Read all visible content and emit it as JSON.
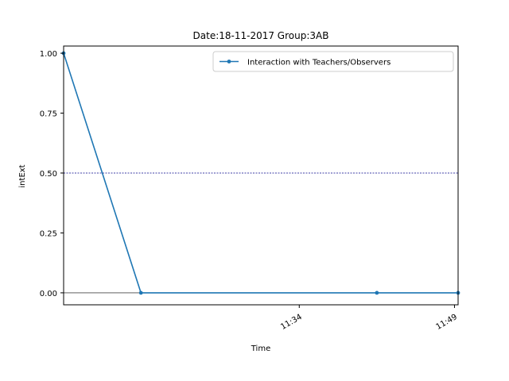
{
  "chart_data": {
    "type": "line",
    "title": "Date:18-11-2017  Group:3AB",
    "xlabel": "Time",
    "ylabel": "intExt",
    "x_axis": {
      "unit": "minutes since 11:00 on the chart's time axis",
      "range": [
        11.23,
        49.35
      ],
      "ticks": [
        {
          "value": 34,
          "label": "11:34"
        },
        {
          "value": 49,
          "label": "11:49"
        }
      ]
    },
    "y_axis": {
      "range": [
        -0.05,
        1.03
      ],
      "ticks": [
        {
          "value": 0.0,
          "label": "0.00"
        },
        {
          "value": 0.25,
          "label": "0.25"
        },
        {
          "value": 0.5,
          "label": "0.50"
        },
        {
          "value": 0.75,
          "label": "0.75"
        },
        {
          "value": 1.0,
          "label": "1.00"
        }
      ]
    },
    "series": [
      {
        "name": "Interaction with Teachers/Observers",
        "color": "#1f77b4",
        "points": [
          {
            "x": 11.23,
            "y": 1.0
          },
          {
            "x": 18.7,
            "y": 0.0
          },
          {
            "x": 41.5,
            "y": 0.0
          },
          {
            "x": 49.35,
            "y": 0.0
          }
        ]
      }
    ],
    "reference_lines": [
      {
        "y": 0.5,
        "style": "dashed",
        "color": "#00008b"
      },
      {
        "y": 0.0,
        "style": "solid",
        "color": "#000000"
      }
    ],
    "legend_position": "top-right",
    "grid": false
  }
}
